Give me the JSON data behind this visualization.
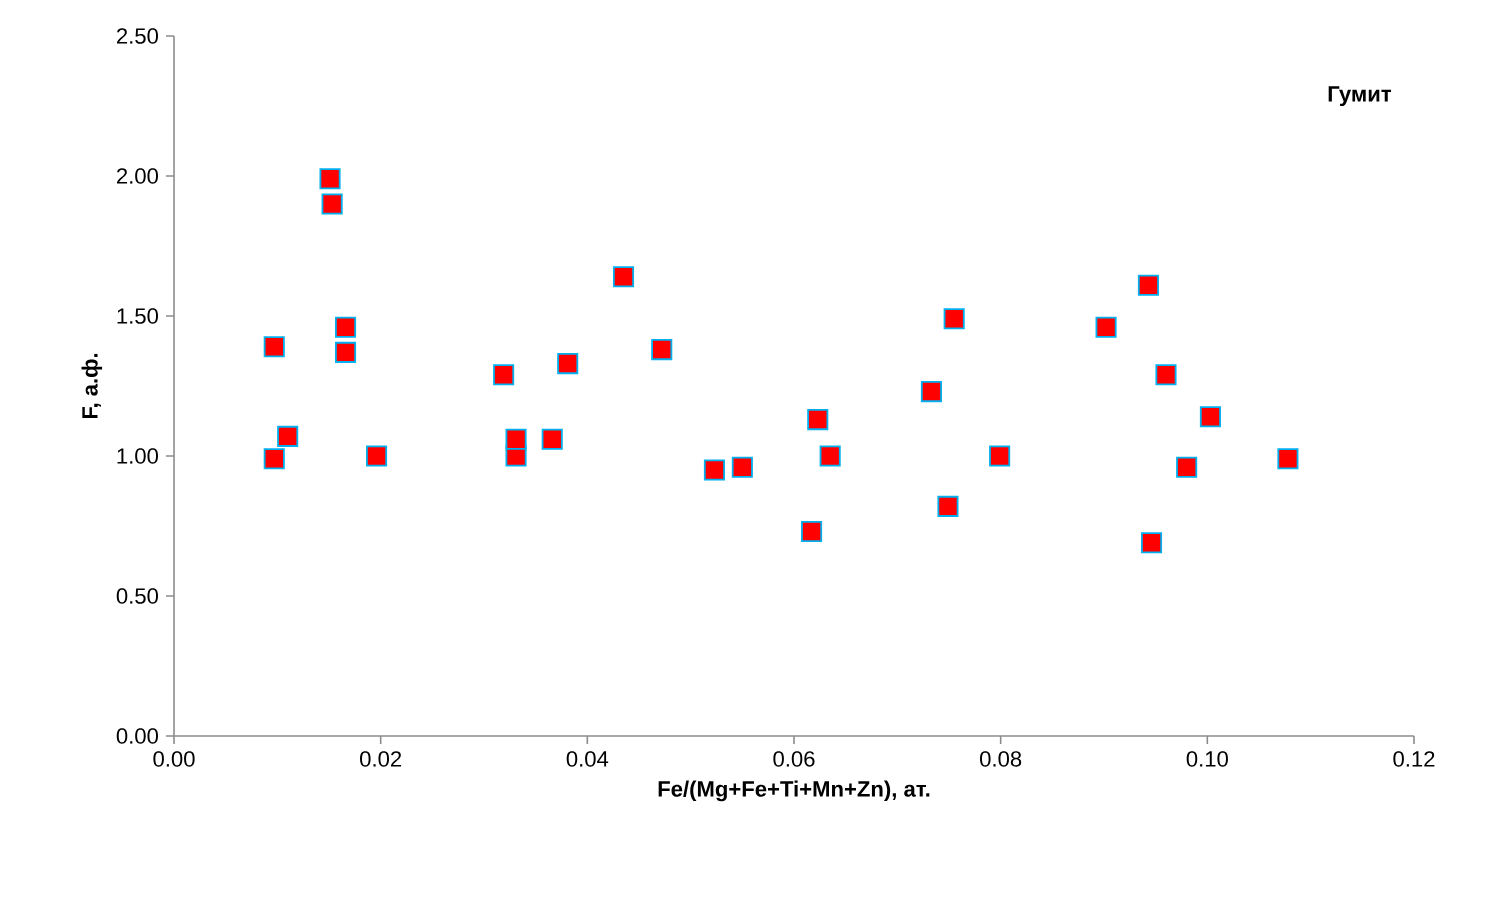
{
  "chart_data": {
    "type": "scatter",
    "title": "Гумит",
    "xlabel": "Fe/(Mg+Fe+Ti+Mn+Zn), ат.",
    "ylabel": "F, а.ф.",
    "x": [
      0.0097,
      0.0097,
      0.011,
      0.0151,
      0.0153,
      0.0166,
      0.0166,
      0.0196,
      0.0319,
      0.0331,
      0.0331,
      0.0366,
      0.0381,
      0.0435,
      0.0472,
      0.0523,
      0.055,
      0.0617,
      0.0623,
      0.0635,
      0.0733,
      0.0749,
      0.0755,
      0.0799,
      0.0902,
      0.0943,
      0.0946,
      0.096,
      0.098,
      0.1003,
      0.1078
    ],
    "values": [
      1.39,
      0.99,
      1.07,
      1.99,
      1.9,
      1.46,
      1.37,
      1.0,
      1.29,
      1.0,
      1.06,
      1.06,
      1.33,
      1.64,
      1.38,
      0.95,
      0.96,
      0.73,
      1.13,
      1.0,
      1.23,
      0.82,
      1.49,
      1.0,
      1.46,
      1.61,
      0.69,
      1.29,
      0.96,
      1.14,
      0.99
    ],
    "color": "#ff0000",
    "marker": "square",
    "xlim": [
      0,
      0.12
    ],
    "xticks": [
      {
        "value": 0,
        "label": "0.00"
      },
      {
        "value": 0.02,
        "label": "0.02"
      },
      {
        "value": 0.04,
        "label": "0.04"
      },
      {
        "value": 0.06,
        "label": "0.06"
      },
      {
        "value": 0.08,
        "label": "0.08"
      },
      {
        "value": 0.1,
        "label": "0.10"
      },
      {
        "value": 0.12,
        "label": "0.12"
      }
    ],
    "ylim": [
      0,
      2.5
    ],
    "yticks": [
      {
        "value": 0,
        "label": "0.00"
      },
      {
        "value": 0.5,
        "label": "0.50"
      },
      {
        "value": 1,
        "label": "1.00"
      },
      {
        "value": 1.5,
        "label": "1.50"
      },
      {
        "value": 2,
        "label": "2.00"
      },
      {
        "value": 2.5,
        "label": "2.50"
      }
    ],
    "grid": false
  }
}
